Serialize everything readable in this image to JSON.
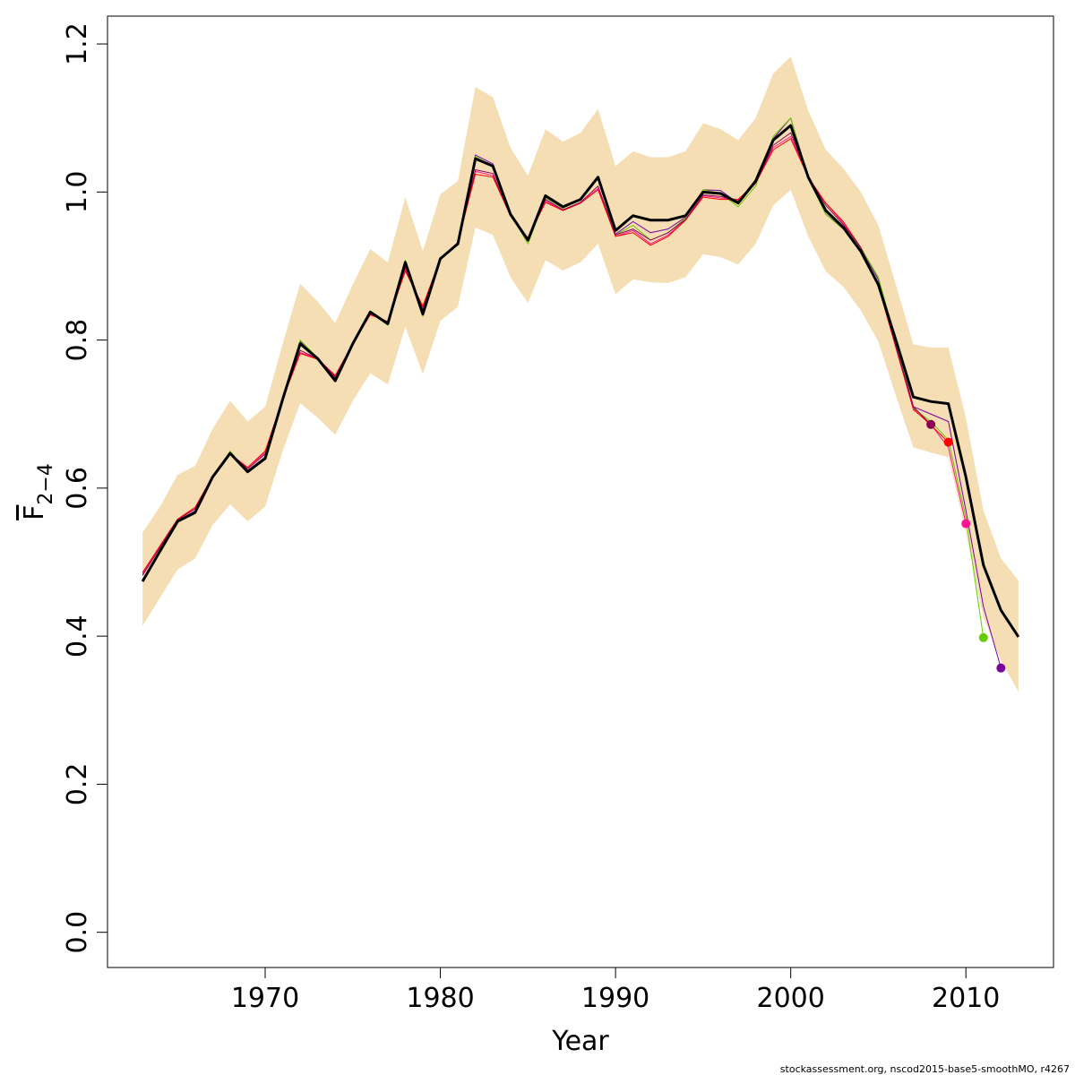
{
  "chart_data": {
    "type": "line",
    "xlabel": "Year",
    "ylabel": {
      "main": "F",
      "subscript": "2−4"
    },
    "footnote": "stockassessment.org, nscod2015-base5-smoothMO, r4267",
    "x": [
      1963,
      1964,
      1965,
      1966,
      1967,
      1968,
      1969,
      1970,
      1971,
      1972,
      1973,
      1974,
      1975,
      1976,
      1977,
      1978,
      1979,
      1980,
      1981,
      1982,
      1983,
      1984,
      1985,
      1986,
      1987,
      1988,
      1989,
      1990,
      1991,
      1992,
      1993,
      1994,
      1995,
      1996,
      1997,
      1998,
      1999,
      2000,
      2001,
      2002,
      2003,
      2004,
      2005,
      2006,
      2007,
      2008,
      2009,
      2010,
      2011,
      2012,
      2013
    ],
    "band": {
      "color": "#f5deb3",
      "upper": [
        0.54,
        0.575,
        0.618,
        0.63,
        0.68,
        0.718,
        0.69,
        0.71,
        0.795,
        0.876,
        0.852,
        0.823,
        0.875,
        0.923,
        0.905,
        0.993,
        0.92,
        0.997,
        1.015,
        1.142,
        1.128,
        1.06,
        1.022,
        1.085,
        1.068,
        1.08,
        1.112,
        1.035,
        1.055,
        1.047,
        1.047,
        1.055,
        1.093,
        1.085,
        1.07,
        1.1,
        1.16,
        1.183,
        1.11,
        1.057,
        1.032,
        1.0,
        0.955,
        0.875,
        0.794,
        0.79,
        0.79,
        0.695,
        0.57,
        0.505,
        0.475
      ],
      "lower": [
        0.414,
        0.452,
        0.49,
        0.505,
        0.55,
        0.578,
        0.555,
        0.575,
        0.65,
        0.715,
        0.695,
        0.672,
        0.718,
        0.755,
        0.74,
        0.818,
        0.754,
        0.826,
        0.845,
        0.952,
        0.942,
        0.885,
        0.85,
        0.908,
        0.894,
        0.905,
        0.93,
        0.862,
        0.882,
        0.878,
        0.877,
        0.885,
        0.916,
        0.912,
        0.902,
        0.93,
        0.982,
        1.003,
        0.94,
        0.893,
        0.872,
        0.84,
        0.798,
        0.725,
        0.655,
        0.648,
        0.642,
        0.54,
        0.425,
        0.367,
        0.325
      ]
    },
    "series": [
      {
        "color": "#7a00a0",
        "width": 1,
        "end_marker": true,
        "values": [
          0.476,
          0.516,
          0.556,
          0.569,
          0.616,
          0.648,
          0.624,
          0.642,
          0.722,
          0.798,
          0.776,
          0.748,
          0.796,
          0.838,
          0.822,
          0.903,
          0.838,
          0.91,
          0.93,
          1.05,
          1.038,
          0.972,
          0.935,
          0.995,
          0.98,
          0.99,
          1.02,
          0.943,
          0.96,
          0.945,
          0.95,
          0.966,
          1.003,
          1.002,
          0.985,
          1.012,
          1.072,
          1.1,
          1.02,
          0.97,
          0.95,
          0.925,
          0.882,
          0.8,
          0.71,
          0.7,
          0.69,
          0.57,
          0.44,
          0.357,
          null
        ]
      },
      {
        "color": "#66cc00",
        "width": 1,
        "end_marker": true,
        "values": [
          0.476,
          0.516,
          0.556,
          0.568,
          0.616,
          0.65,
          0.622,
          0.642,
          0.722,
          0.8,
          0.776,
          0.745,
          0.795,
          0.838,
          0.82,
          0.908,
          0.832,
          0.91,
          0.93,
          1.048,
          1.035,
          0.97,
          0.93,
          0.992,
          0.978,
          0.99,
          1.018,
          0.942,
          0.955,
          0.935,
          0.945,
          0.965,
          1.003,
          0.998,
          0.98,
          1.008,
          1.075,
          1.1,
          1.018,
          0.97,
          0.95,
          0.925,
          0.885,
          0.8,
          0.708,
          0.69,
          0.665,
          0.56,
          0.398,
          null,
          null
        ]
      },
      {
        "color": "#ff1493",
        "width": 1,
        "end_marker": true,
        "values": [
          0.484,
          0.522,
          0.558,
          0.572,
          0.616,
          0.646,
          0.628,
          0.648,
          0.72,
          0.783,
          0.775,
          0.752,
          0.795,
          0.835,
          0.825,
          0.895,
          0.845,
          0.91,
          0.932,
          1.028,
          1.022,
          0.968,
          0.938,
          0.988,
          0.975,
          0.985,
          1.005,
          0.94,
          0.948,
          0.93,
          0.942,
          0.962,
          0.995,
          0.992,
          0.99,
          1.012,
          1.06,
          1.075,
          1.02,
          0.985,
          0.958,
          0.925,
          0.875,
          0.79,
          0.706,
          0.686,
          0.655,
          0.552,
          null,
          null,
          null
        ]
      },
      {
        "color": "#ff0000",
        "width": 1,
        "end_marker": true,
        "values": [
          0.486,
          0.522,
          0.558,
          0.574,
          0.616,
          0.646,
          0.628,
          0.65,
          0.72,
          0.782,
          0.774,
          0.752,
          0.795,
          0.834,
          0.825,
          0.893,
          0.846,
          0.91,
          0.932,
          1.024,
          1.02,
          0.968,
          0.938,
          0.986,
          0.975,
          0.985,
          1.003,
          0.94,
          0.945,
          0.928,
          0.94,
          0.962,
          0.993,
          0.99,
          0.99,
          1.012,
          1.057,
          1.072,
          1.02,
          0.985,
          0.96,
          0.925,
          0.873,
          0.79,
          0.707,
          0.685,
          0.662,
          null,
          null,
          null,
          null
        ]
      },
      {
        "color": "#8b0057",
        "width": 1,
        "end_marker": true,
        "values": [
          0.482,
          0.52,
          0.557,
          0.572,
          0.616,
          0.647,
          0.626,
          0.646,
          0.72,
          0.786,
          0.775,
          0.75,
          0.795,
          0.836,
          0.824,
          0.898,
          0.842,
          0.91,
          0.931,
          1.03,
          1.025,
          0.968,
          0.937,
          0.99,
          0.976,
          0.986,
          1.008,
          0.942,
          0.95,
          0.935,
          0.945,
          0.963,
          0.996,
          0.994,
          0.988,
          1.012,
          1.063,
          1.08,
          1.02,
          0.982,
          0.956,
          0.925,
          0.876,
          0.792,
          0.71,
          0.686,
          null,
          null,
          null,
          null,
          null
        ]
      },
      {
        "color": "#000000",
        "width": 3,
        "end_marker": false,
        "values": [
          0.474,
          0.515,
          0.555,
          0.567,
          0.615,
          0.647,
          0.622,
          0.64,
          0.72,
          0.795,
          0.775,
          0.745,
          0.795,
          0.838,
          0.822,
          0.905,
          0.835,
          0.91,
          0.93,
          1.045,
          1.035,
          0.97,
          0.935,
          0.995,
          0.98,
          0.99,
          1.02,
          0.948,
          0.968,
          0.962,
          0.962,
          0.968,
          1.0,
          0.998,
          0.985,
          1.015,
          1.07,
          1.09,
          1.02,
          0.975,
          0.952,
          0.92,
          0.875,
          0.8,
          0.723,
          0.717,
          0.714,
          0.615,
          0.496,
          0.435,
          0.399
        ]
      }
    ],
    "xlim": [
      1961,
      2015
    ],
    "ylim": [
      -0.0476,
      1.2376
    ],
    "xticks": [
      1970,
      1980,
      1990,
      2000,
      2010
    ],
    "yticks": [
      {
        "value": 0,
        "label": "0.0"
      },
      0.2,
      0.4,
      0.6,
      0.8,
      {
        "value": 1,
        "label": "1.0"
      },
      1.2
    ]
  }
}
